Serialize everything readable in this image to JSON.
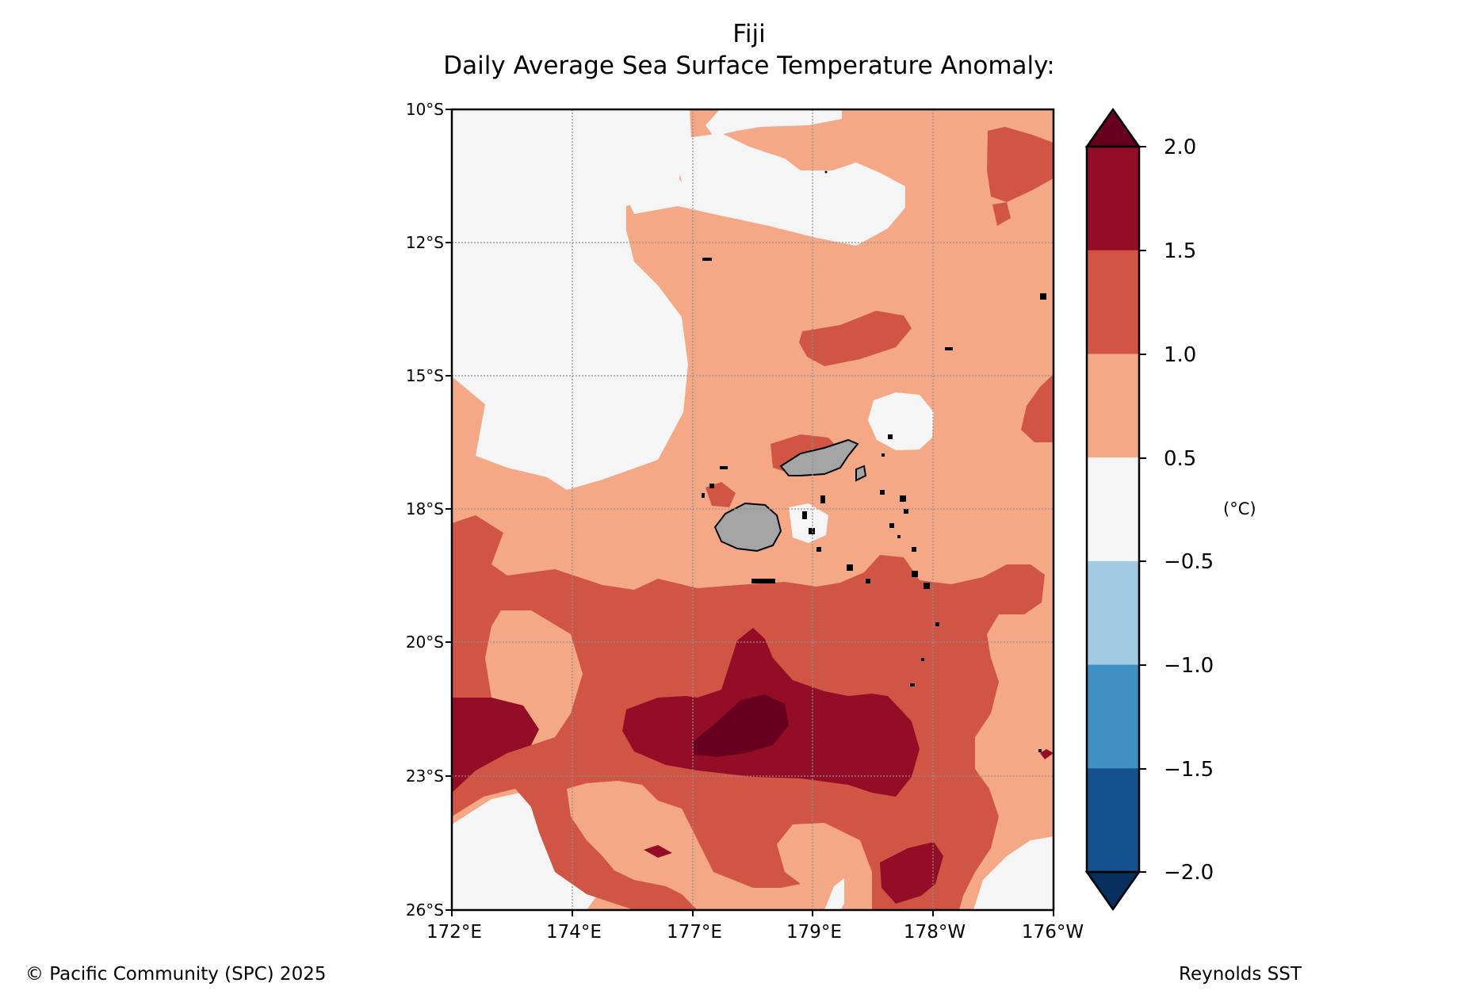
{
  "header": {
    "title": "Fiji",
    "subtitle": "Daily Average Sea Surface Temperature Anomaly:"
  },
  "map": {
    "lat_ticks": [
      "10°S",
      "12°S",
      "15°S",
      "18°S",
      "20°S",
      "23°S",
      "26°S"
    ],
    "lon_ticks": [
      "172°E",
      "174°E",
      "177°E",
      "179°E",
      "178°W",
      "176°W"
    ],
    "land_color": "#a5a5a5"
  },
  "colorbar": {
    "unit": "(°C)",
    "tick_labels": [
      "2.0",
      "1.5",
      "1.0",
      "0.5",
      "−0.5",
      "−1.0",
      "−1.5",
      "−2.0"
    ],
    "levels": [
      {
        "range": "> 2.0",
        "color": "#67001f"
      },
      {
        "range": "1.5 – 2.0",
        "color": "#940d26"
      },
      {
        "range": "1.0 – 1.5",
        "color": "#d15545"
      },
      {
        "range": "0.5 – 1.0",
        "color": "#f5a886"
      },
      {
        "range": "−0.5 – 0.5",
        "color": "#f5f5f5"
      },
      {
        "range": "−1.0 – −0.5",
        "color": "#9fcae1"
      },
      {
        "range": "−1.5 – −1.0",
        "color": "#4090c3"
      },
      {
        "range": "−2.0 – −1.5",
        "color": "#15508f"
      },
      {
        "range": "< −2.0",
        "color": "#08305e"
      }
    ]
  },
  "footer": {
    "credit": "© Pacific Community (SPC) 2025",
    "source": "Reynolds SST"
  }
}
